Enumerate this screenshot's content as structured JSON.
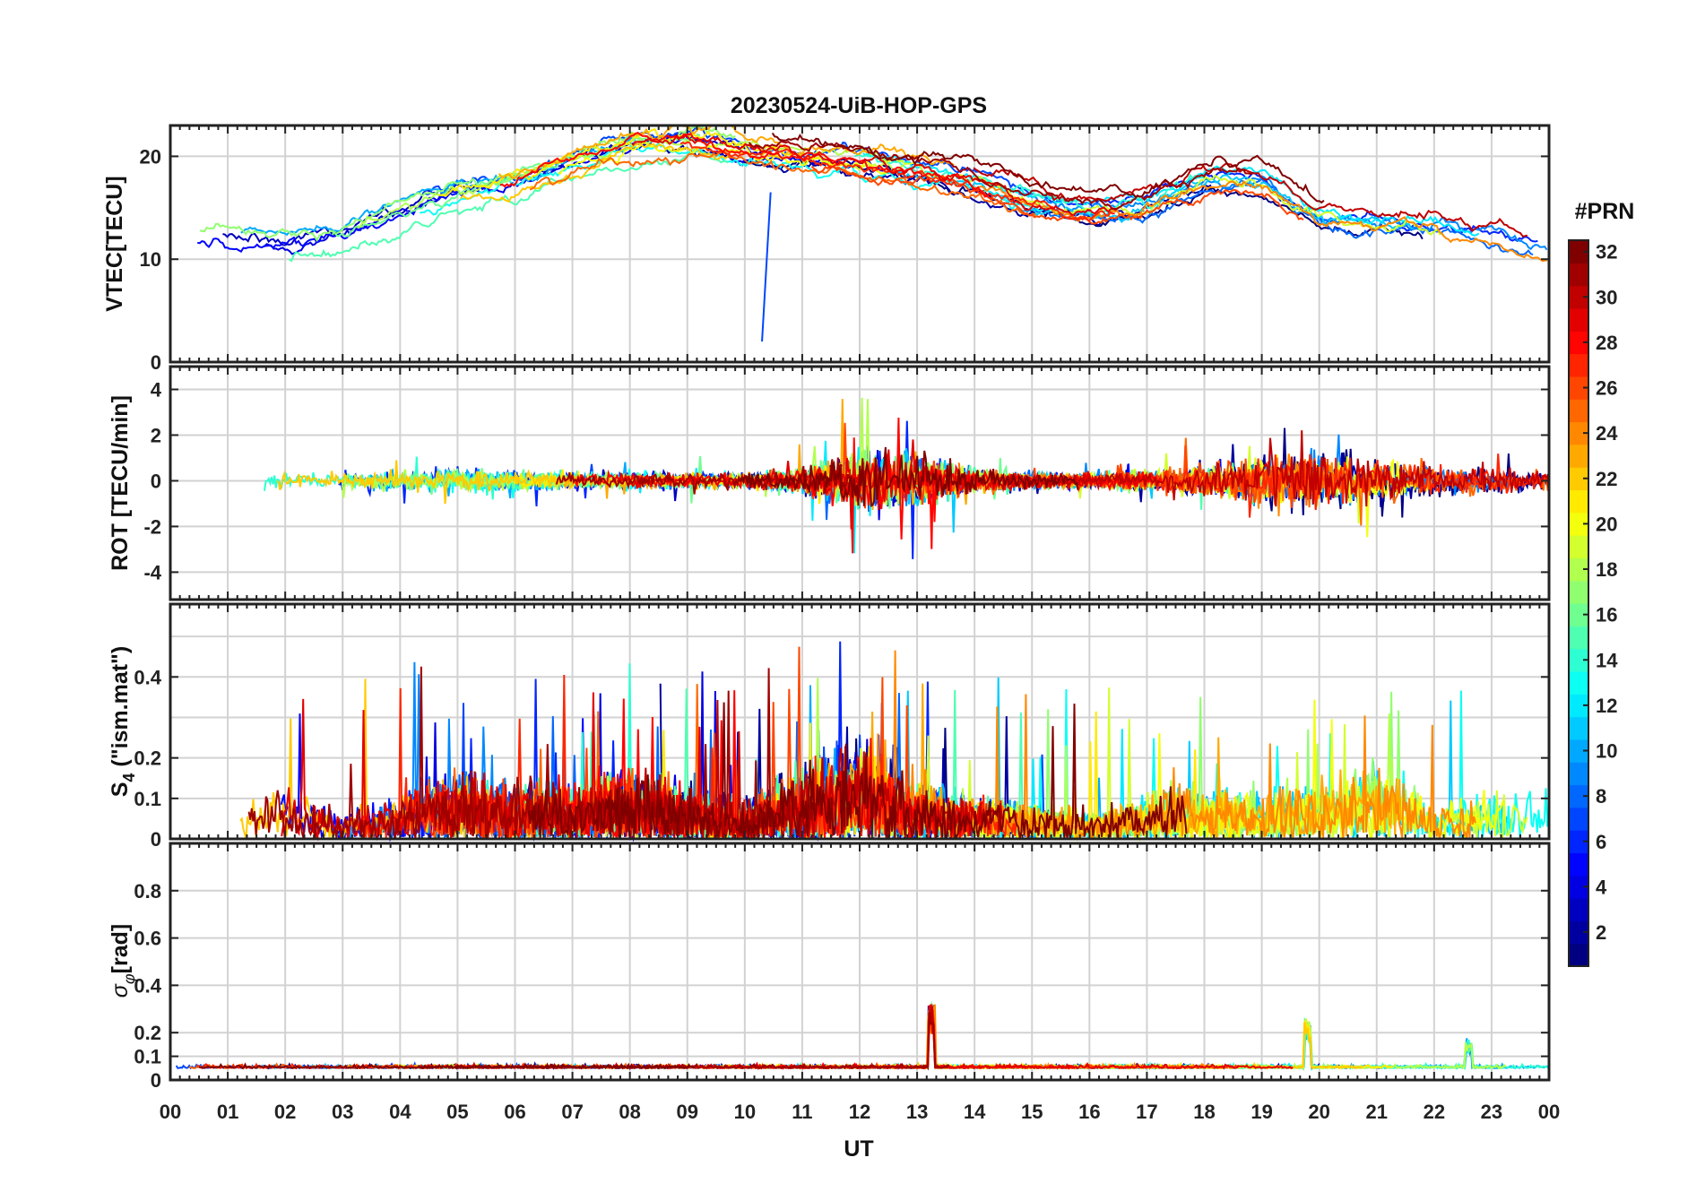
{
  "chart_data": {
    "type": "line",
    "title": "20230524-UiB-HOP-GPS",
    "xlabel": "UT",
    "xlim": [
      0,
      24
    ],
    "x_tick_labels": [
      "00",
      "01",
      "02",
      "03",
      "04",
      "05",
      "06",
      "07",
      "08",
      "09",
      "10",
      "11",
      "12",
      "13",
      "14",
      "15",
      "16",
      "17",
      "18",
      "19",
      "20",
      "21",
      "22",
      "23",
      "00"
    ],
    "grid": true,
    "colorbar": {
      "label": "#PRN",
      "range": [
        1,
        32
      ],
      "tick_labels": [
        "2",
        "4",
        "6",
        "8",
        "10",
        "12",
        "14",
        "16",
        "18",
        "20",
        "22",
        "24",
        "26",
        "28",
        "30",
        "32"
      ],
      "colormap": "jet",
      "placement": "right"
    },
    "series_key": "PRN",
    "series_count": 32,
    "panels": [
      {
        "id": "vtec",
        "ylabel": "VTEC[TECU]",
        "ylim": [
          0,
          23
        ],
        "ytick_labels": [
          "0",
          "10",
          "20"
        ],
        "ytick_values": [
          0,
          10,
          20
        ],
        "profile_x": [
          0,
          1,
          2,
          3,
          4,
          5,
          6,
          7,
          8,
          9,
          10,
          11,
          12,
          13,
          14,
          15,
          16,
          17,
          18,
          19,
          20,
          21,
          22,
          23,
          24
        ],
        "profile_y": [
          12.5,
          12,
          11.5,
          12.5,
          14.5,
          16.5,
          17.5,
          19.5,
          21,
          21.5,
          20.5,
          20,
          19.5,
          18.5,
          17.5,
          15.5,
          14.5,
          15,
          17.5,
          17.5,
          14,
          13.5,
          13,
          12,
          10.5
        ]
      },
      {
        "id": "rot",
        "ylabel": "ROT [TECU/min]",
        "ylim": [
          -5.2,
          5
        ],
        "ytick_labels": [
          "-4",
          "-2",
          "0",
          "2",
          "4"
        ],
        "ytick_values": [
          -4,
          -2,
          0,
          2,
          4
        ],
        "activity_x": [
          0,
          1,
          2,
          3,
          4,
          5,
          6,
          7,
          8,
          9,
          10,
          11,
          12,
          13,
          14,
          15,
          16,
          17,
          18,
          19,
          20,
          21,
          22,
          23,
          24
        ],
        "activity_y": [
          0.4,
          0.3,
          0.3,
          0.3,
          0.4,
          0.5,
          0.4,
          0.3,
          0.3,
          0.3,
          0.3,
          0.5,
          1.2,
          1.0,
          0.5,
          0.3,
          0.3,
          0.4,
          0.6,
          1.0,
          1.2,
          0.9,
          0.6,
          0.5,
          0.4
        ]
      },
      {
        "id": "s4",
        "ylabel": "S4 (\"ism.mat\")",
        "ylim": [
          0,
          0.58
        ],
        "ytick_labels": [
          "0",
          "0.1",
          "0.2",
          "0.4"
        ],
        "ytick_values": [
          0,
          0.1,
          0.2,
          0.4
        ],
        "grid_values": [
          0.1,
          0.2,
          0.3,
          0.4,
          0.5
        ],
        "activity_x": [
          0,
          1,
          2,
          3,
          4,
          5,
          6,
          7,
          8,
          9,
          10,
          11,
          12,
          13,
          14,
          15,
          16,
          17,
          18,
          19,
          20,
          21,
          22,
          23,
          24
        ],
        "activity_y": [
          0.15,
          0.08,
          0.12,
          0.06,
          0.1,
          0.16,
          0.12,
          0.12,
          0.16,
          0.12,
          0.08,
          0.16,
          0.22,
          0.12,
          0.1,
          0.08,
          0.06,
          0.1,
          0.12,
          0.1,
          0.12,
          0.18,
          0.08,
          0.1,
          0.12
        ]
      },
      {
        "id": "sigma",
        "ylabel": "σφ[rad]",
        "ylim": [
          0,
          1
        ],
        "ytick_labels": [
          "0",
          "0.1",
          "0.2",
          "0.4",
          "0.6",
          "0.8"
        ],
        "ytick_values": [
          0,
          0.1,
          0.2,
          0.4,
          0.6,
          0.8
        ],
        "grid_values": [
          0.1,
          0.2,
          0.4,
          0.6,
          0.8
        ],
        "baseline": 0.05,
        "peaks": [
          {
            "x": 13.25,
            "y": 0.32
          },
          {
            "x": 19.8,
            "y": 0.26
          },
          {
            "x": 22.6,
            "y": 0.18
          }
        ]
      }
    ],
    "annotations": {
      "vtec_dropout": {
        "x": [
          10.45,
          10.3
        ],
        "y": [
          16.5,
          2
        ]
      }
    }
  },
  "texts": {
    "s4_label_main": "S",
    "s4_label_sub": "4",
    "s4_label_rest": " (\"ism.mat\")",
    "sigma_label_main": "σ",
    "sigma_label_sub": "φ",
    "sigma_label_rest": "[rad]"
  }
}
